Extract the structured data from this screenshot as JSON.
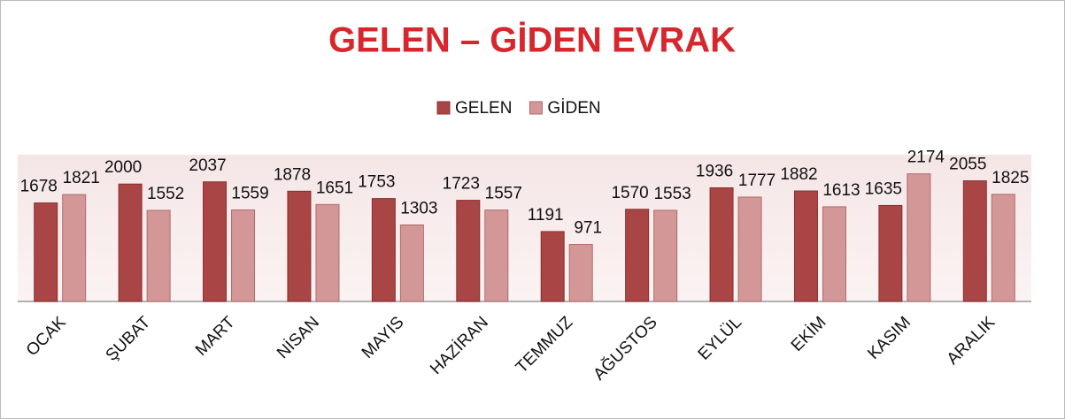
{
  "chart_data": {
    "type": "bar",
    "title": "GELEN – GİDEN EVRAK",
    "categories": [
      "OCAK",
      "ŞUBAT",
      "MART",
      "NİSAN",
      "MAYIS",
      "HAZİRAN",
      "TEMMUZ",
      "AĞUSTOS",
      "EYLÜL",
      "EKİM",
      "KASIM",
      "ARALIK"
    ],
    "series": [
      {
        "name": "GELEN",
        "color": "#a94545",
        "values": [
          1678,
          2000,
          2037,
          1878,
          1753,
          1723,
          1191,
          1570,
          1936,
          1882,
          1635,
          2055
        ]
      },
      {
        "name": "GİDEN",
        "color": "#d49797",
        "values": [
          1821,
          1552,
          1559,
          1651,
          1303,
          1557,
          971,
          1553,
          1777,
          1613,
          2174,
          1825
        ]
      }
    ],
    "ylim": [
      0,
      2500
    ],
    "legend": "top"
  }
}
